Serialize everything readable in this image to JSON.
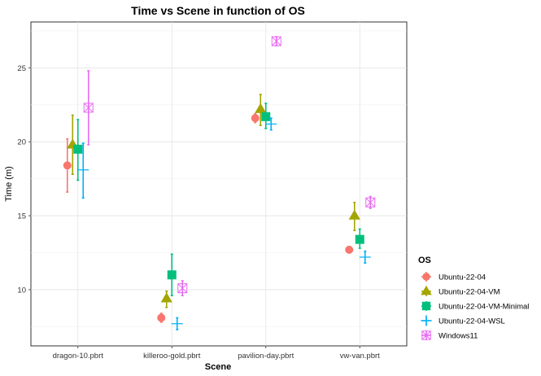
{
  "chart_data": {
    "type": "scatter",
    "title": "Time vs Scene in function of OS",
    "xlabel": "Scene",
    "ylabel": "Time (m)",
    "categories": [
      "dragon-10.pbrt",
      "killeroo-gold.pbrt",
      "pavilion-day.pbrt",
      "vw-van.pbrt"
    ],
    "ylim": [
      6.2,
      28.1
    ],
    "yticks": [
      10,
      15,
      20,
      25
    ],
    "grid": true,
    "legend": {
      "title": "OS",
      "position": "right"
    },
    "series": [
      {
        "name": "Ubuntu-22-04",
        "color": "#F8766D",
        "shape": "circle",
        "values": [
          18.4,
          8.1,
          21.6,
          12.7
        ],
        "low": [
          16.6,
          7.8,
          21.3,
          12.5
        ],
        "high": [
          20.2,
          8.4,
          21.9,
          12.9
        ]
      },
      {
        "name": "Ubuntu-22-04-VM",
        "color": "#A3A500",
        "shape": "triangle",
        "values": [
          19.8,
          9.4,
          22.2,
          15.0
        ],
        "low": [
          17.8,
          8.8,
          21.1,
          14.0
        ],
        "high": [
          21.8,
          9.9,
          23.2,
          15.9
        ]
      },
      {
        "name": "Ubuntu-22-04-VM-Minimal",
        "color": "#00BF7D",
        "shape": "square",
        "values": [
          19.5,
          11.0,
          21.7,
          13.4
        ],
        "low": [
          17.4,
          9.6,
          20.9,
          12.8
        ],
        "high": [
          21.5,
          12.4,
          22.6,
          14.1
        ]
      },
      {
        "name": "Ubuntu-22-04-WSL",
        "color": "#00B0F6",
        "shape": "plus",
        "values": [
          18.1,
          7.7,
          21.2,
          12.2
        ],
        "low": [
          16.2,
          7.3,
          20.8,
          11.8
        ],
        "high": [
          19.9,
          8.1,
          21.6,
          12.6
        ]
      },
      {
        "name": "Windows11",
        "color": "#E76BF3",
        "shape": "square-x",
        "values": [
          22.3,
          10.1,
          26.8,
          15.9
        ],
        "low": [
          19.8,
          9.6,
          26.5,
          15.5
        ],
        "high": [
          24.8,
          10.6,
          27.1,
          16.3
        ]
      }
    ]
  }
}
